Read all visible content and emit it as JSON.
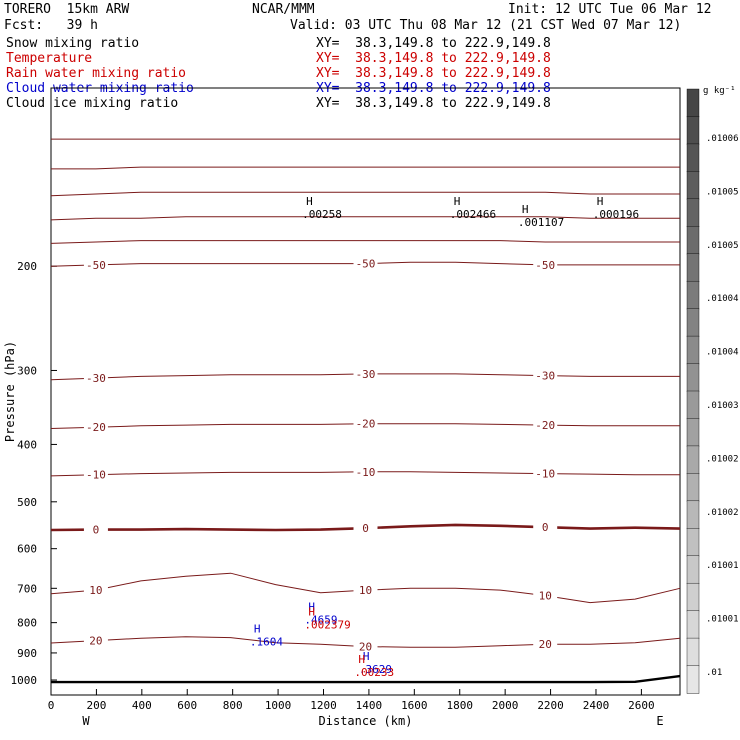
{
  "header": {
    "model": "TORERO  15km ARW",
    "center": "NCAR/MMM",
    "init": "Init: 12 UTC Tue 06 Mar 12",
    "fcst": "Fcst:   39 h",
    "valid": "Valid: 03 UTC Thu 08 Mar 12 (21 CST Wed 07 Mar 12)"
  },
  "legend": [
    {
      "label": "Snow mixing ratio",
      "xy": "XY=  38.3,149.8 to 222.9,149.8",
      "color": "#000000"
    },
    {
      "label": "Temperature",
      "xy": "XY=  38.3,149.8 to 222.9,149.8",
      "color": "#cc0000"
    },
    {
      "label": "Rain water mixing ratio",
      "xy": "XY=  38.3,149.8 to 222.9,149.8",
      "color": "#cc0000"
    },
    {
      "label": "Cloud water mixing ratio",
      "xy": "XY=  38.3,149.8 to 222.9,149.8",
      "color": "#0000cc"
    },
    {
      "label": "Cloud ice mixing ratio",
      "xy": "XY=  38.3,149.8 to 222.9,149.8",
      "color": "#000000"
    }
  ],
  "chart_data": {
    "type": "line",
    "xlabel": "Distance (km)",
    "ylabel": "Pressure (hPa)",
    "x_left_label": "W",
    "x_right_label": "E",
    "xlim": [
      0,
      2770
    ],
    "ylim": [
      1060,
      100
    ],
    "x_ticks": [
      0,
      200,
      400,
      600,
      800,
      1000,
      1200,
      1400,
      1600,
      1800,
      2000,
      2200,
      2400,
      2600
    ],
    "y_ticks": [
      200,
      300,
      400,
      500,
      600,
      700,
      800,
      900,
      1000
    ],
    "colorbar": {
      "unit": "g kg⁻¹",
      "labels": [
        ".01006",
        ".01005",
        ".01005",
        ".01004",
        ".01004",
        ".01003",
        ".01002",
        ".01002",
        ".01001",
        ".01001",
        ".01"
      ]
    },
    "temperature_contours": [
      {
        "value": -60,
        "label": "",
        "y": [
          122,
          122,
          122,
          122,
          122,
          122,
          122,
          122,
          122,
          122,
          122,
          122,
          122,
          122,
          122
        ]
      },
      {
        "value": -58,
        "label": "",
        "y": [
          137,
          137,
          136,
          136,
          136,
          136,
          136,
          136,
          136,
          136,
          136,
          136,
          136,
          136,
          136
        ]
      },
      {
        "value": -56,
        "label": "",
        "y": [
          152,
          151,
          150,
          150,
          150,
          150,
          150,
          150,
          150,
          150,
          150,
          150,
          151,
          151,
          151
        ]
      },
      {
        "value": -54,
        "label": "",
        "y": [
          167,
          166,
          166,
          165,
          165,
          165,
          165,
          165,
          165,
          165,
          165,
          165,
          166,
          166,
          166
        ]
      },
      {
        "value": -52,
        "label": "",
        "y": [
          183,
          182,
          181,
          181,
          181,
          181,
          181,
          181,
          181,
          181,
          181,
          182,
          182,
          182,
          182
        ]
      },
      {
        "value": -50,
        "label": "-50",
        "y": [
          200,
          199,
          198,
          198,
          198,
          198,
          198,
          198,
          197,
          197,
          198,
          199,
          199,
          199,
          199
        ]
      },
      {
        "value": -30,
        "label": "-30",
        "y": [
          311,
          309,
          307,
          306,
          305,
          305,
          305,
          304,
          304,
          304,
          305,
          306,
          307,
          307,
          307
        ]
      },
      {
        "value": -20,
        "label": "-20",
        "y": [
          376,
          374,
          372,
          371,
          370,
          370,
          370,
          369,
          369,
          369,
          370,
          371,
          372,
          372,
          372
        ]
      },
      {
        "value": -10,
        "label": "-10",
        "y": [
          452,
          450,
          448,
          447,
          446,
          446,
          446,
          445,
          445,
          446,
          447,
          448,
          449,
          450,
          450
        ]
      },
      {
        "value": 0,
        "label": "0",
        "y": [
          558,
          557,
          557,
          556,
          557,
          558,
          557,
          554,
          550,
          547,
          549,
          552,
          555,
          553,
          555
        ]
      },
      {
        "value": 10,
        "label": "10",
        "y": [
          715,
          705,
          680,
          668,
          660,
          690,
          712,
          705,
          700,
          700,
          705,
          720,
          740,
          730,
          700
        ]
      },
      {
        "value": 20,
        "label": "20",
        "y": [
          866,
          858,
          850,
          845,
          848,
          865,
          870,
          878,
          880,
          880,
          875,
          870,
          870,
          865,
          850
        ]
      }
    ],
    "surface_pressure": [
      1008,
      1008,
      1008,
      1008,
      1008,
      1008,
      1008,
      1008,
      1008,
      1008,
      1008,
      1008,
      1008,
      1007,
      985
    ],
    "cloud_water_maxima": [
      {
        "x": 920,
        "p": 845,
        "label": ".1604"
      },
      {
        "x": 1160,
        "p": 775,
        "label": ".4659"
      },
      {
        "x": 1400,
        "p": 940,
        "label": ".3629"
      }
    ],
    "rain_water_maxima": [
      {
        "x": 1160,
        "p": 790,
        "label": ".002379"
      },
      {
        "x": 1380,
        "p": 950,
        "label": ".00233"
      }
    ],
    "cloud_ice_maxima": [
      {
        "x": 1150,
        "p": 160,
        "label": ".00258"
      },
      {
        "x": 1800,
        "p": 160,
        "label": ".002466"
      },
      {
        "x": 2100,
        "p": 165,
        "label": ".001107"
      },
      {
        "x": 2430,
        "p": 160,
        "label": ".000196"
      }
    ],
    "maxima_marker": "H"
  }
}
